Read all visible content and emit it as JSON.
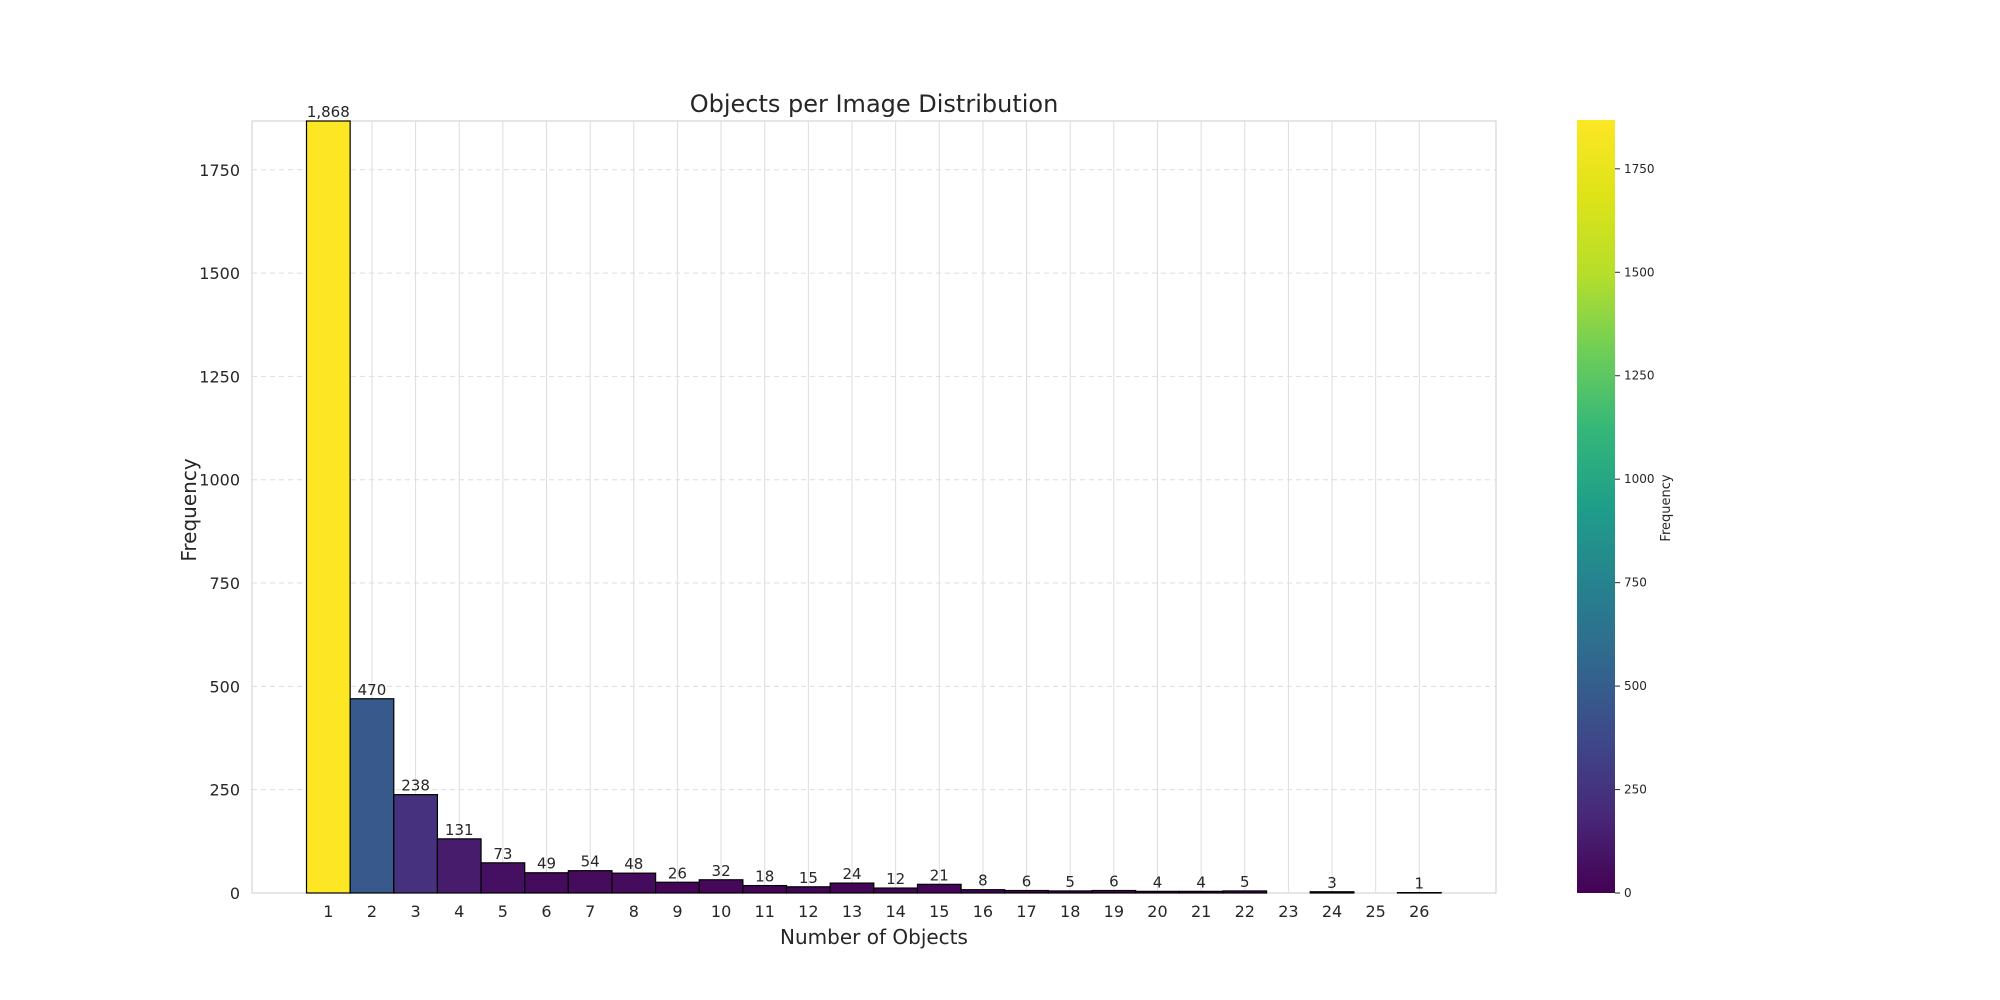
{
  "chart_data": {
    "type": "bar",
    "title": "Objects per Image Distribution",
    "xlabel": "Number of Objects",
    "ylabel": "Frequency",
    "categories": [
      "1",
      "2",
      "3",
      "4",
      "5",
      "6",
      "7",
      "8",
      "9",
      "10",
      "11",
      "12",
      "13",
      "14",
      "15",
      "16",
      "17",
      "18",
      "19",
      "20",
      "21",
      "22",
      "23",
      "24",
      "25",
      "26"
    ],
    "values": [
      1868,
      470,
      238,
      131,
      73,
      49,
      54,
      48,
      26,
      32,
      18,
      15,
      24,
      12,
      21,
      8,
      6,
      5,
      6,
      4,
      4,
      5,
      0,
      3,
      0,
      1
    ],
    "bar_labels": [
      "1,868",
      "470",
      "238",
      "131",
      "73",
      "49",
      "54",
      "48",
      "26",
      "32",
      "18",
      "15",
      "24",
      "12",
      "21",
      "8",
      "6",
      "5",
      "6",
      "4",
      "4",
      "5",
      "",
      "3",
      "",
      "1"
    ],
    "ylim": [
      0,
      1868
    ],
    "yticks": [
      0,
      250,
      500,
      750,
      1000,
      1250,
      1500,
      1750
    ],
    "y_grid": "dashed",
    "x_grid": "solid",
    "colormap": "viridis",
    "colorbar": {
      "label": "Frequency",
      "range": [
        0,
        1868
      ],
      "ticks": [
        0,
        250,
        500,
        750,
        1000,
        1250,
        1500,
        1750
      ]
    },
    "colors": {
      "grid": "#dddddd",
      "bar_edge": "#000000",
      "text": "#262626"
    }
  }
}
